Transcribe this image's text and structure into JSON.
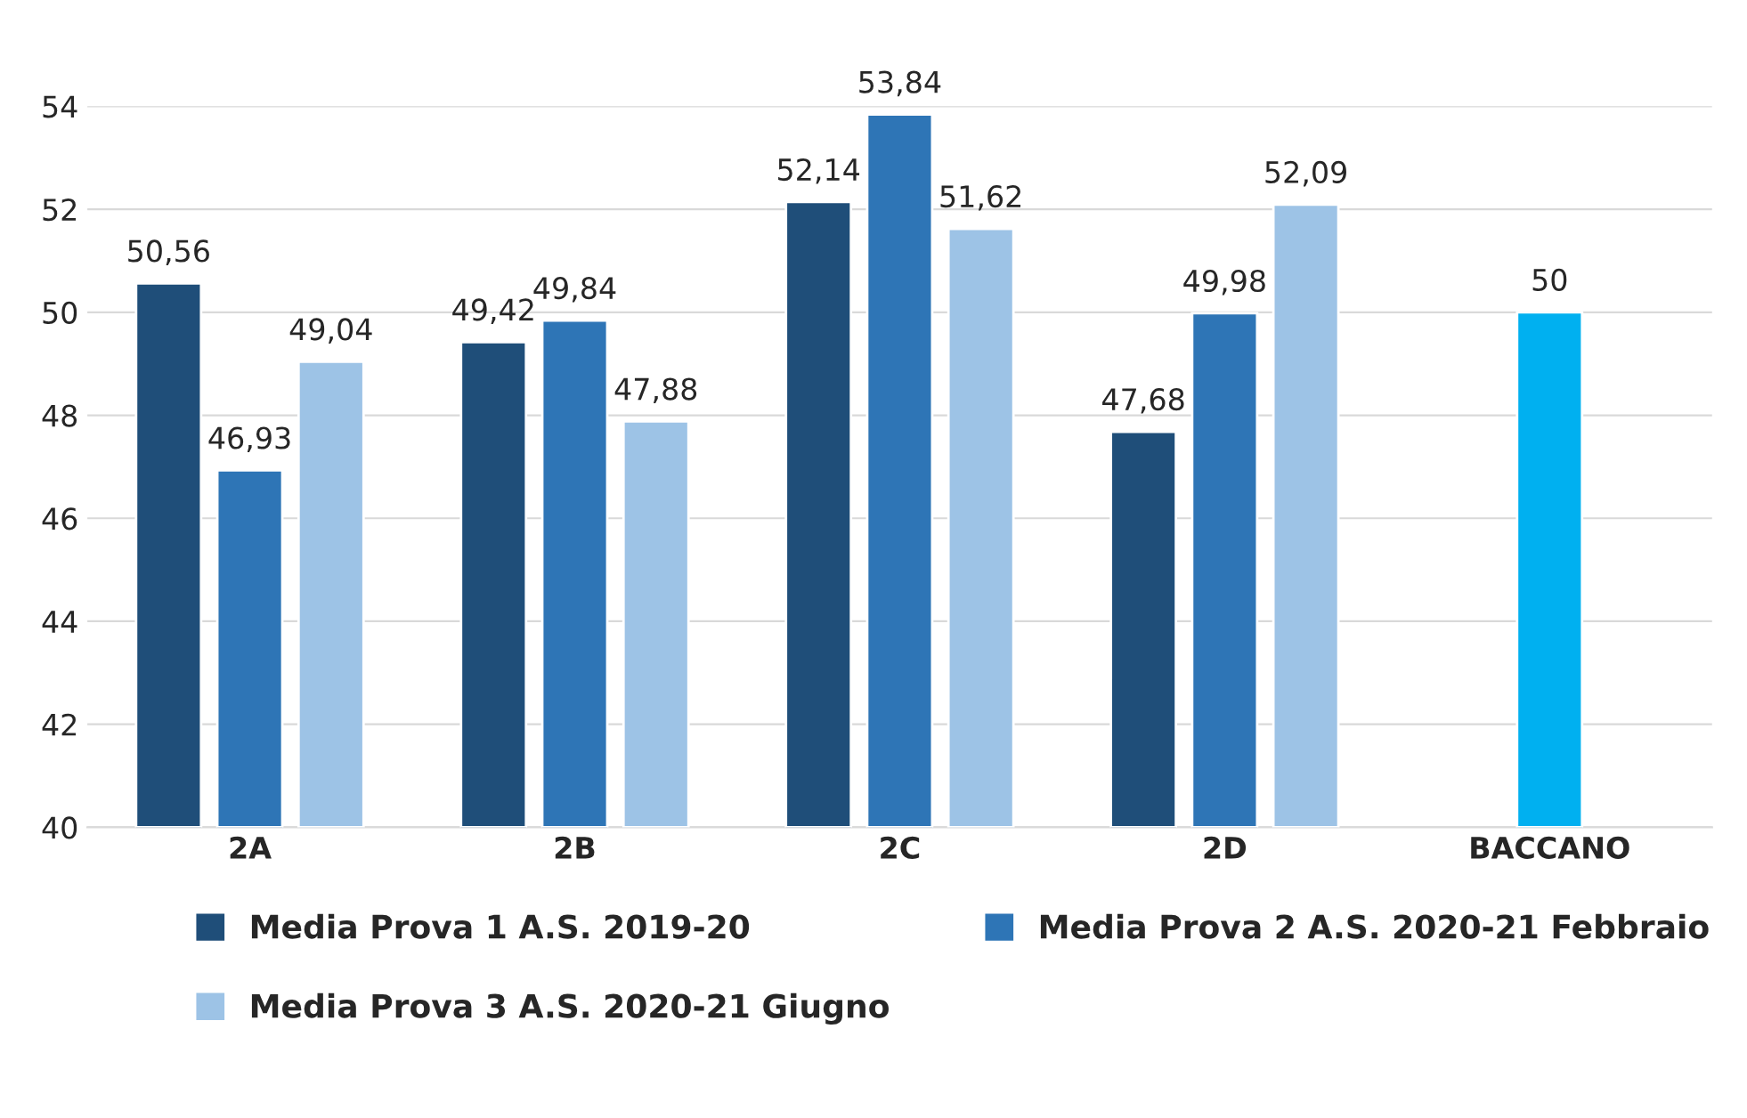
{
  "chart_data": {
    "type": "bar",
    "categories": [
      "2A",
      "2B",
      "2C",
      "2D",
      "BACCANO"
    ],
    "series": [
      {
        "name": "Media Prova 1 A.S. 2019-20",
        "color": "#1f4e79",
        "values": [
          50.56,
          49.42,
          52.14,
          47.68,
          null
        ],
        "value_labels": [
          "50,56",
          "49,42",
          "52,14",
          "47,68",
          null
        ]
      },
      {
        "name": "Media Prova 2 A.S. 2020-21 Febbraio",
        "color": "#2e75b6",
        "colors": [
          "#2e75b6",
          "#2e75b6",
          "#2e75b6",
          "#2e75b6",
          "#00b0f0"
        ],
        "values": [
          46.93,
          49.84,
          53.84,
          49.98,
          50
        ],
        "value_labels": [
          "46,93",
          "49,84",
          "53,84",
          "49,98",
          "50"
        ]
      },
      {
        "name": "Media Prova 3 A.S. 2020-21 Giugno",
        "color": "#9dc3e6",
        "values": [
          49.04,
          47.88,
          51.62,
          52.09,
          null
        ],
        "value_labels": [
          "49,04",
          "47,88",
          "51,62",
          "52,09",
          null
        ]
      }
    ],
    "ylim": [
      40,
      54
    ],
    "yticks": [
      40,
      42,
      44,
      46,
      48,
      50,
      52,
      54
    ],
    "grid": "y",
    "legend": "bottom"
  }
}
